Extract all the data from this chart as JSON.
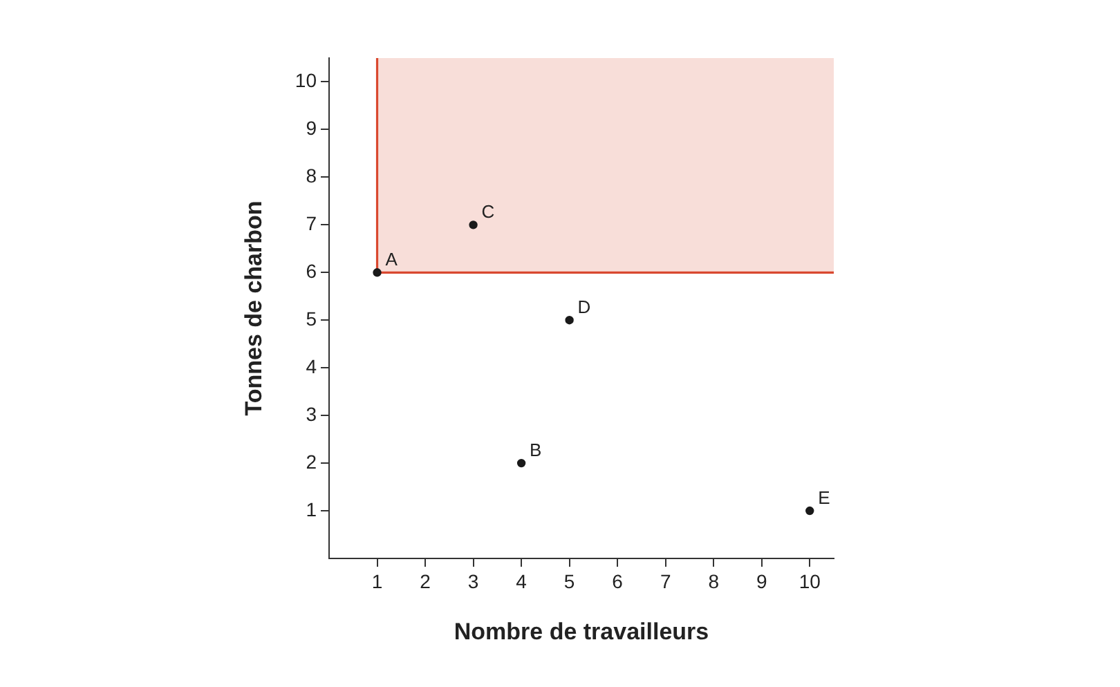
{
  "chart_data": {
    "type": "scatter",
    "xlabel": "Nombre de travailleurs",
    "ylabel": "Tonnes de charbon",
    "xlim": [
      0,
      10.5
    ],
    "ylim": [
      0,
      10.5
    ],
    "xticks": [
      1,
      2,
      3,
      4,
      5,
      6,
      7,
      8,
      9,
      10
    ],
    "yticks": [
      1,
      2,
      3,
      4,
      5,
      6,
      7,
      8,
      9,
      10
    ],
    "grid": false,
    "legend": false,
    "series": [
      {
        "type": "line",
        "color": "#d9482f",
        "marker": "none",
        "x": [
          1,
          10.5
        ],
        "values": [
          6,
          6
        ],
        "lower": [
          6,
          6
        ],
        "upper": [
          10.5,
          10.5
        ]
      },
      {
        "type": "line",
        "color": "#d9482f",
        "marker": "none",
        "x": [
          1,
          1
        ],
        "values": [
          6,
          10.5
        ]
      },
      {
        "type": "scatter",
        "color": "#1a1a1a",
        "marker": "circle",
        "x": [
          1,
          4,
          3,
          5,
          10
        ],
        "values": [
          6,
          2,
          7,
          5,
          1
        ]
      }
    ],
    "annotations": [
      {
        "text": "A",
        "x": 1,
        "y": 6
      },
      {
        "text": "B",
        "x": 4,
        "y": 2
      },
      {
        "text": "C",
        "x": 3,
        "y": 7
      },
      {
        "text": "D",
        "x": 5,
        "y": 5
      },
      {
        "text": "E",
        "x": 10,
        "y": 1
      }
    ]
  }
}
